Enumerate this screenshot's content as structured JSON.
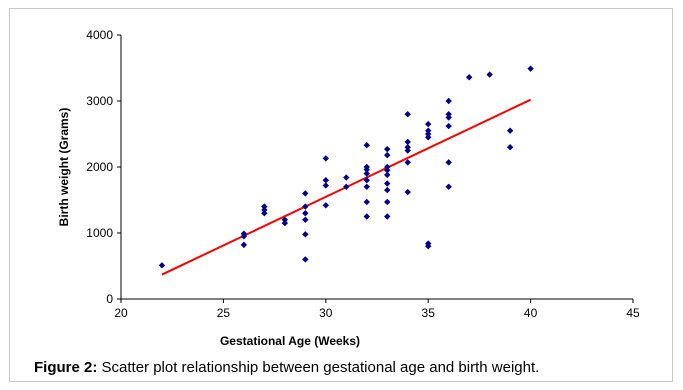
{
  "caption": {
    "label": "Figure 2:",
    "text": " Scatter plot relationship between gestational age and birth weight."
  },
  "colors": {
    "points": "#00008B",
    "trendline": "#ff0000",
    "axis": "#000000"
  },
  "chart_data": {
    "type": "scatter",
    "title": "",
    "xlabel": "Gestational Age (Weeks)",
    "ylabel": "Birth weight (Grams)",
    "xlim": [
      20,
      45
    ],
    "ylim": [
      0,
      4000
    ],
    "x_ticks": [
      20,
      25,
      30,
      35,
      40,
      45
    ],
    "y_ticks": [
      0,
      1000,
      2000,
      3000,
      4000
    ],
    "grid": false,
    "legend": "none",
    "series": [
      {
        "points": [
          [
            22,
            510
          ],
          [
            26,
            820
          ],
          [
            26,
            950
          ],
          [
            26,
            990
          ],
          [
            27,
            1300
          ],
          [
            27,
            1350
          ],
          [
            27,
            1400
          ],
          [
            28,
            1150
          ],
          [
            28,
            1200
          ],
          [
            29,
            600
          ],
          [
            29,
            980
          ],
          [
            29,
            1200
          ],
          [
            29,
            1300
          ],
          [
            29,
            1400
          ],
          [
            29,
            1600
          ],
          [
            30,
            1420
          ],
          [
            30,
            1720
          ],
          [
            30,
            1800
          ],
          [
            30,
            2130
          ],
          [
            31,
            1700
          ],
          [
            31,
            1840
          ],
          [
            32,
            1250
          ],
          [
            32,
            1470
          ],
          [
            32,
            1700
          ],
          [
            32,
            1800
          ],
          [
            32,
            1900
          ],
          [
            32,
            1960
          ],
          [
            32,
            2000
          ],
          [
            32,
            2330
          ],
          [
            33,
            1250
          ],
          [
            33,
            1470
          ],
          [
            33,
            1650
          ],
          [
            33,
            1750
          ],
          [
            33,
            1880
          ],
          [
            33,
            1950
          ],
          [
            33,
            2000
          ],
          [
            33,
            2180
          ],
          [
            33,
            2270
          ],
          [
            34,
            1620
          ],
          [
            34,
            2070
          ],
          [
            34,
            2250
          ],
          [
            34,
            2300
          ],
          [
            34,
            2380
          ],
          [
            34,
            2800
          ],
          [
            35,
            800
          ],
          [
            35,
            840
          ],
          [
            35,
            2450
          ],
          [
            35,
            2500
          ],
          [
            35,
            2550
          ],
          [
            35,
            2650
          ],
          [
            36,
            1700
          ],
          [
            36,
            2070
          ],
          [
            36,
            2620
          ],
          [
            36,
            2750
          ],
          [
            36,
            2800
          ],
          [
            36,
            3000
          ],
          [
            37,
            3360
          ],
          [
            38,
            3400
          ],
          [
            39,
            2300
          ],
          [
            39,
            2550
          ],
          [
            40,
            3490
          ]
        ]
      }
    ],
    "trendline": {
      "type": "linear",
      "x": [
        22,
        40
      ],
      "y": [
        370,
        3020
      ]
    }
  }
}
